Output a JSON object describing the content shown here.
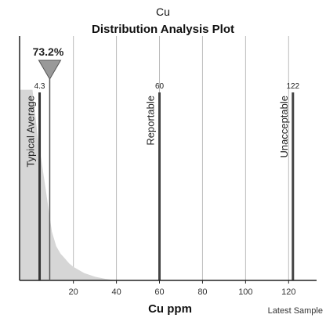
{
  "chart_data": {
    "type": "area",
    "element": "Cu",
    "title": "Distribution Analysis Plot",
    "xlabel": "Cu ppm",
    "xlim": [
      -5,
      133
    ],
    "ylim": [
      0,
      1
    ],
    "grid": true,
    "x_ticks": [
      20,
      40,
      60,
      80,
      100,
      120
    ],
    "distribution": {
      "x": [
        -5,
        1,
        2,
        3,
        4,
        5,
        6,
        7,
        8,
        9,
        10,
        12,
        14,
        16,
        18,
        20,
        25,
        30,
        35,
        40
      ],
      "y": [
        0.78,
        0.78,
        0.7,
        0.62,
        0.55,
        0.5,
        0.44,
        0.38,
        0.32,
        0.26,
        0.2,
        0.14,
        0.11,
        0.09,
        0.07,
        0.055,
        0.03,
        0.015,
        0.006,
        0.0
      ]
    },
    "markers": [
      {
        "label": "Typical Average",
        "value": 4.3,
        "value_label": "4.3",
        "color": "#333333"
      },
      {
        "label": "Reportable",
        "value": 60,
        "value_label": "60",
        "color": "#444444"
      },
      {
        "label": "Unacceptable",
        "value": 122,
        "value_label": "122",
        "color": "#444444"
      }
    ],
    "latest_sample": {
      "label": "Latest Sample",
      "value": 9,
      "percentile_label": "73.2%"
    },
    "colors": {
      "fill": "#d6d6d6",
      "grid": "#bbbbbb",
      "axis": "#222222",
      "pointer_fill": "#999999",
      "pointer_stroke": "#555555"
    }
  }
}
